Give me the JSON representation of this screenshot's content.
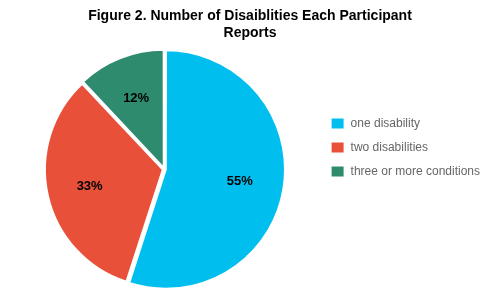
{
  "chart_data": {
    "type": "pie",
    "title": "Figure 2. Number of Disaiblities Each Participant\nReports",
    "categories": [
      "one disability",
      "two disabilities",
      "three or more conditions"
    ],
    "values": [
      55,
      33,
      12
    ],
    "value_labels": [
      "55%",
      "33%",
      "12%"
    ],
    "colors": [
      "#00BFEF",
      "#E8503A",
      "#2E8B6E"
    ],
    "legend": "right",
    "data_labels": true
  }
}
